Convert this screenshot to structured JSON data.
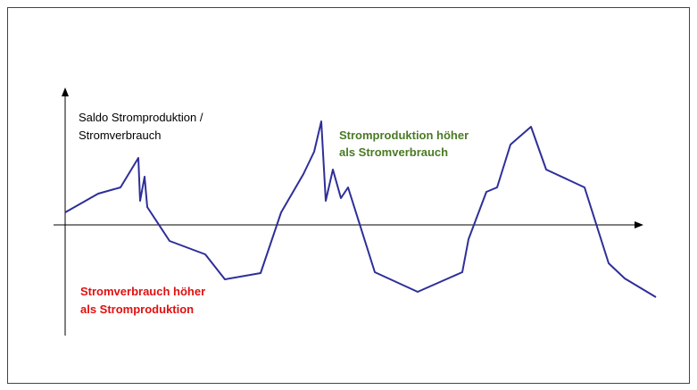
{
  "axis_label": [
    "Saldo Stromproduktion /",
    "Stromverbrauch"
  ],
  "surplus_label": [
    "Stromproduktion höher",
    "als Stromverbrauch"
  ],
  "deficit_label": [
    "Stromverbrauch höher",
    "als Stromproduktion"
  ]
}
